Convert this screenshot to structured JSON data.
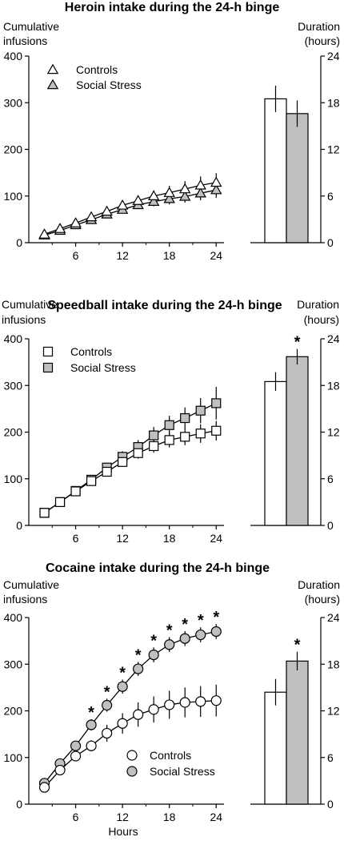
{
  "chart_data": [
    {
      "type": "line",
      "title": "Heroin intake during the 24-h binge",
      "ylabel_lines": [
        "Cumulative",
        "infusions"
      ],
      "xlabel": "",
      "xticks": [
        6,
        12,
        18,
        24
      ],
      "yticks": [
        0,
        100,
        200,
        300,
        400
      ],
      "xlim": [
        0,
        25
      ],
      "ylim": [
        0,
        400
      ],
      "marker": "triangle",
      "x": [
        2,
        4,
        6,
        8,
        10,
        12,
        14,
        16,
        18,
        20,
        22,
        24
      ],
      "series": [
        {
          "name": "Controls",
          "fill": "#ffffff",
          "values": [
            18,
            30,
            42,
            55,
            67,
            80,
            90,
            100,
            107,
            115,
            123,
            129
          ],
          "err": [
            4,
            5,
            5,
            6,
            7,
            8,
            10,
            12,
            15,
            17,
            19,
            20
          ]
        },
        {
          "name": "Social Stress",
          "fill": "#c0c0c0",
          "values": [
            16,
            26,
            38,
            49,
            61,
            71,
            81,
            88,
            94,
            99,
            106,
            113
          ],
          "err": [
            4,
            5,
            5,
            6,
            6,
            7,
            8,
            10,
            12,
            13,
            15,
            17
          ]
        }
      ],
      "legend": "top-left",
      "duration": {
        "ylabel_lines": [
          "Duration",
          "(hours)"
        ],
        "yticks": [
          0,
          6,
          12,
          18,
          24
        ],
        "ylim": [
          0,
          24
        ],
        "bars": [
          {
            "name": "Controls",
            "value": 18.5,
            "err": 1.7,
            "fill": "#ffffff",
            "sig": ""
          },
          {
            "name": "Social Stress",
            "value": 16.6,
            "err": 1.7,
            "fill": "#c0c0c0",
            "sig": ""
          }
        ]
      }
    },
    {
      "type": "line",
      "title": "Speedball intake during the 24-h binge",
      "ylabel_lines": [
        "Cumulative",
        "infusions"
      ],
      "xlabel": "",
      "xticks": [
        6,
        12,
        18,
        24
      ],
      "yticks": [
        0,
        100,
        200,
        300,
        400
      ],
      "xlim": [
        0,
        25
      ],
      "ylim": [
        0,
        400
      ],
      "marker": "square",
      "x": [
        2,
        4,
        6,
        8,
        10,
        12,
        14,
        16,
        18,
        20,
        22,
        24
      ],
      "series": [
        {
          "name": "Controls",
          "fill": "#ffffff",
          "values": [
            27,
            50,
            73,
            95,
            115,
            136,
            155,
            170,
            183,
            190,
            197,
            203
          ],
          "err": [
            3,
            4,
            5,
            6,
            8,
            10,
            12,
            14,
            16,
            18,
            20,
            21
          ]
        },
        {
          "name": "Social Stress",
          "fill": "#c0c0c0",
          "values": [
            27,
            50,
            74,
            98,
            124,
            147,
            168,
            193,
            215,
            230,
            246,
            262
          ],
          "err": [
            3,
            4,
            5,
            7,
            10,
            12,
            15,
            18,
            20,
            23,
            27,
            35
          ]
        }
      ],
      "legend": "top-left",
      "duration": {
        "ylabel_lines": [
          "Duration",
          "(hours)"
        ],
        "yticks": [
          0,
          6,
          12,
          18,
          24
        ],
        "ylim": [
          0,
          24
        ],
        "bars": [
          {
            "name": "Controls",
            "value": 18.5,
            "err": 1.2,
            "fill": "#ffffff",
            "sig": ""
          },
          {
            "name": "Social Stress",
            "value": 21.7,
            "err": 1.0,
            "fill": "#c0c0c0",
            "sig": "*"
          }
        ]
      }
    },
    {
      "type": "line",
      "title": "Cocaine intake during the 24-h binge",
      "ylabel_lines": [
        "Cumulative",
        "infusions"
      ],
      "xlabel": "Hours",
      "xticks": [
        6,
        12,
        18,
        24
      ],
      "yticks": [
        0,
        100,
        200,
        300,
        400
      ],
      "xlim": [
        0,
        25
      ],
      "ylim": [
        0,
        400
      ],
      "marker": "circle",
      "x": [
        2,
        4,
        6,
        8,
        10,
        12,
        14,
        16,
        18,
        20,
        22,
        24
      ],
      "series": [
        {
          "name": "Controls",
          "fill": "#ffffff",
          "values": [
            36,
            73,
            103,
            125,
            152,
            173,
            192,
            203,
            213,
            218,
            220,
            222
          ],
          "err": [
            4,
            6,
            8,
            12,
            18,
            22,
            26,
            28,
            30,
            32,
            33,
            34
          ]
        },
        {
          "name": "Social Stress",
          "fill": "#c0c0c0",
          "values": [
            45,
            87,
            125,
            170,
            212,
            252,
            290,
            320,
            342,
            355,
            363,
            370
          ],
          "err": [
            4,
            6,
            9,
            12,
            14,
            15,
            15,
            16,
            16,
            16,
            16,
            16
          ]
        }
      ],
      "stars": [
        "",
        "",
        "",
        "*",
        "*",
        "*",
        "*",
        "*",
        "*",
        "*",
        "*",
        "*"
      ],
      "legend": "bottom-right",
      "duration": {
        "ylabel_lines": [
          "Duration",
          "(hours)"
        ],
        "yticks": [
          0,
          6,
          12,
          18,
          24
        ],
        "ylim": [
          0,
          24
        ],
        "bars": [
          {
            "name": "Controls",
            "value": 14.4,
            "err": 1.7,
            "fill": "#ffffff",
            "sig": ""
          },
          {
            "name": "Social Stress",
            "value": 18.4,
            "err": 1.2,
            "fill": "#c0c0c0",
            "sig": "*"
          }
        ]
      }
    }
  ]
}
